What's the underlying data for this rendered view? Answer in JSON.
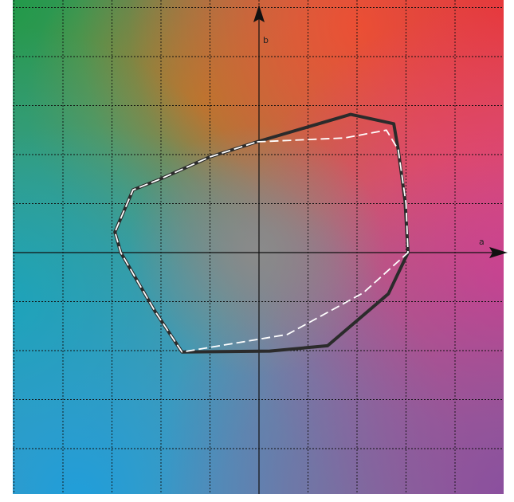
{
  "chart_data": {
    "type": "line",
    "title": "",
    "xlabel": "a",
    "ylabel": "b",
    "xlim": [
      -5,
      5
    ],
    "ylim": [
      -5,
      5
    ],
    "grid": true,
    "legend": "none",
    "series": [
      {
        "style": "solid-dark",
        "color": "#2b2b2b",
        "points": [
          [
            -0.04,
            2.26
          ],
          [
            1.87,
            2.82
          ],
          [
            2.75,
            2.63
          ],
          [
            2.84,
            2.1
          ],
          [
            2.98,
            1.05
          ],
          [
            3.04,
            0.0
          ],
          [
            2.64,
            -0.84
          ],
          [
            1.4,
            -1.9
          ],
          [
            0.22,
            -2.01
          ],
          [
            -1.57,
            -2.03
          ],
          [
            -2.12,
            -1.2
          ],
          [
            -2.82,
            0.0
          ],
          [
            -2.94,
            0.42
          ],
          [
            -2.57,
            1.28
          ],
          [
            -2.02,
            1.5
          ],
          [
            -1.01,
            1.95
          ]
        ]
      },
      {
        "style": "dashed-white",
        "color": "#ffffff",
        "points": [
          [
            -0.04,
            2.26
          ],
          [
            1.75,
            2.34
          ],
          [
            2.6,
            2.5
          ],
          [
            2.84,
            2.1
          ],
          [
            3.0,
            1.0
          ],
          [
            3.04,
            0.0
          ],
          [
            2.13,
            -0.82
          ],
          [
            0.58,
            -1.67
          ],
          [
            -1.57,
            -2.03
          ],
          [
            -2.12,
            -1.2
          ],
          [
            -2.82,
            0.0
          ],
          [
            -2.94,
            0.42
          ],
          [
            -2.57,
            1.28
          ],
          [
            -2.02,
            1.5
          ],
          [
            -1.01,
            1.95
          ]
        ]
      }
    ],
    "background_colors": {
      "green": "#1f9a48",
      "olive": "#9a8c2c",
      "orange": "#f07a2a",
      "red": "#e8373a",
      "magenta": "#e93c8a",
      "teal": "#1aa8a0",
      "blue": "#1f9edb",
      "purple": "#8a4e9f",
      "grey_center": "#8a8a8a"
    }
  }
}
